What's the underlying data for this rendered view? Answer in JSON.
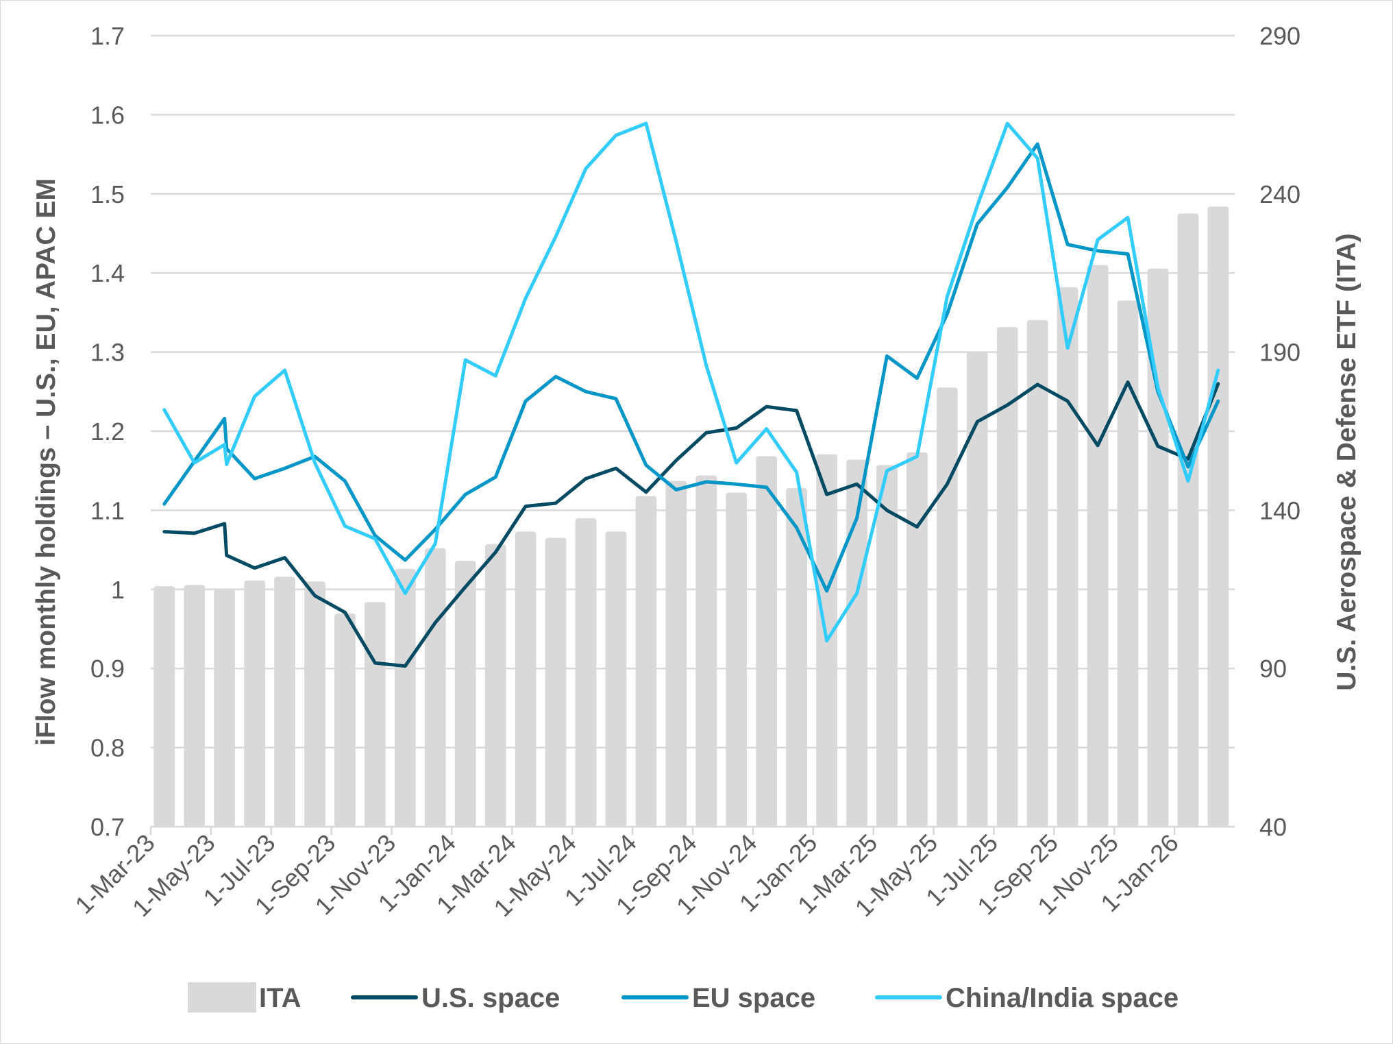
{
  "chart_data": {
    "type": "bar+line",
    "y_left": {
      "label": "iFlow monthly holdings – U.S., EU, APAC EM",
      "lim": [
        0.7,
        1.7
      ],
      "ticks": [
        "0.7",
        "0.8",
        "0.9",
        "1",
        "1.1",
        "1.2",
        "1.3",
        "1.4",
        "1.5",
        "1.6",
        "1.7"
      ]
    },
    "y_right": {
      "label": "U.S. Aerospace & Defense ETF (ITA)",
      "lim": [
        40,
        290
      ],
      "ticks": [
        "40",
        "90",
        "140",
        "190",
        "240",
        "290"
      ]
    },
    "x_axis": {
      "range": [
        "2023-03-01",
        "2026-03-01"
      ],
      "ticks": [
        "1-Mar-23",
        "1-May-23",
        "1-Jul-23",
        "1-Sep-23",
        "1-Nov-23",
        "1-Jan-24",
        "1-Mar-24",
        "1-May-24",
        "1-Jul-24",
        "1-Sep-24",
        "1-Nov-24",
        "1-Jan-25",
        "1-Mar-25",
        "1-May-25",
        "1-Jul-25",
        "1-Sep-25",
        "1-Nov-25",
        "1-Jan-26"
      ]
    },
    "grid": "horizontal",
    "legend_position": "bottom",
    "months": [
      "2023-03",
      "2023-04",
      "2023-05",
      "2023-06",
      "2023-07",
      "2023-08",
      "2023-09",
      "2023-10",
      "2023-11",
      "2023-12",
      "2024-01",
      "2024-02",
      "2024-03",
      "2024-04",
      "2024-05",
      "2024-06",
      "2024-07",
      "2024-08",
      "2024-09",
      "2024-10",
      "2024-11",
      "2024-12",
      "2025-01",
      "2025-02",
      "2025-03",
      "2025-04",
      "2025-05",
      "2025-06",
      "2025-07",
      "2025-08",
      "2025-09",
      "2025-10",
      "2025-11",
      "2025-12",
      "2026-01",
      "2026-02"
    ],
    "bars": {
      "name": "ITA",
      "axis": "right",
      "color": "#D9D9D9",
      "values": [
        116,
        116.4,
        115,
        117.8,
        119,
        117.5,
        107.4,
        111,
        121.5,
        128,
        124,
        129.3,
        133.3,
        131.3,
        137.5,
        133.3,
        144.5,
        149.3,
        151,
        145.6,
        157.1,
        147,
        157.7,
        156,
        154.3,
        158.3,
        178.8,
        190,
        197.9,
        200.1,
        210.5,
        217.5,
        206.3,
        216.4,
        233.8,
        236
      ]
    },
    "series": [
      {
        "name": "U.S. space",
        "axis": "left",
        "color": "#004B63",
        "points": [
          [
            "2023-03",
            1.073
          ],
          [
            "2023-04",
            1.071
          ],
          [
            "2023-05",
            1.083
          ],
          [
            "2023-05",
            1.043
          ],
          [
            "2023-06",
            1.027
          ],
          [
            "2023-07",
            1.04
          ],
          [
            "2023-08",
            0.992
          ],
          [
            "2023-09",
            0.971
          ],
          [
            "2023-10",
            0.907
          ],
          [
            "2023-11",
            0.903
          ],
          [
            "2023-12",
            0.958
          ],
          [
            "2024-01",
            1.003
          ],
          [
            "2024-02",
            1.047
          ],
          [
            "2024-03",
            1.105
          ],
          [
            "2024-04",
            1.109
          ],
          [
            "2024-05",
            1.14
          ],
          [
            "2024-06",
            1.153
          ],
          [
            "2024-07",
            1.123
          ],
          [
            "2024-08",
            1.163
          ],
          [
            "2024-09",
            1.198
          ],
          [
            "2024-10",
            1.204
          ],
          [
            "2024-11",
            1.231
          ],
          [
            "2024-12",
            1.226
          ],
          [
            "2025-01",
            1.12
          ],
          [
            "2025-02",
            1.133
          ],
          [
            "2025-03",
            1.1
          ],
          [
            "2025-04",
            1.079
          ],
          [
            "2025-05",
            1.133
          ],
          [
            "2025-06",
            1.212
          ],
          [
            "2025-07",
            1.233
          ],
          [
            "2025-08",
            1.259
          ],
          [
            "2025-09",
            1.238
          ],
          [
            "2025-10",
            1.182
          ],
          [
            "2025-11",
            1.262
          ],
          [
            "2025-12",
            1.181
          ],
          [
            "2026-01",
            1.165
          ],
          [
            "2026-02",
            1.26
          ]
        ]
      },
      {
        "name": "EU space",
        "axis": "left",
        "color": "#0096C8",
        "points": [
          [
            "2023-03",
            1.108
          ],
          [
            "2023-04",
            1.162
          ],
          [
            "2023-05",
            1.216
          ],
          [
            "2023-05",
            1.178
          ],
          [
            "2023-06",
            1.14
          ],
          [
            "2023-07",
            1.153
          ],
          [
            "2023-08",
            1.168
          ],
          [
            "2023-09",
            1.137
          ],
          [
            "2023-10",
            1.068
          ],
          [
            "2023-11",
            1.037
          ],
          [
            "2023-12",
            1.076
          ],
          [
            "2024-01",
            1.12
          ],
          [
            "2024-02",
            1.142
          ],
          [
            "2024-03",
            1.238
          ],
          [
            "2024-04",
            1.269
          ],
          [
            "2024-05",
            1.25
          ],
          [
            "2024-06",
            1.241
          ],
          [
            "2024-07",
            1.157
          ],
          [
            "2024-08",
            1.126
          ],
          [
            "2024-09",
            1.136
          ],
          [
            "2024-10",
            1.133
          ],
          [
            "2024-11",
            1.129
          ],
          [
            "2024-12",
            1.078
          ],
          [
            "2025-01",
            0.998
          ],
          [
            "2025-02",
            1.09
          ],
          [
            "2025-03",
            1.295
          ],
          [
            "2025-04",
            1.267
          ],
          [
            "2025-05",
            1.348
          ],
          [
            "2025-06",
            1.462
          ],
          [
            "2025-07",
            1.508
          ],
          [
            "2025-08",
            1.563
          ],
          [
            "2025-09",
            1.436
          ],
          [
            "2025-10",
            1.428
          ],
          [
            "2025-11",
            1.424
          ],
          [
            "2025-12",
            1.25
          ],
          [
            "2026-01",
            1.155
          ],
          [
            "2026-02",
            1.238
          ]
        ]
      },
      {
        "name": "China/India space",
        "axis": "left",
        "color": "#33CCFF",
        "points": [
          [
            "2023-03",
            1.227
          ],
          [
            "2023-04",
            1.16
          ],
          [
            "2023-05",
            1.183
          ],
          [
            "2023-05",
            1.158
          ],
          [
            "2023-06",
            1.244
          ],
          [
            "2023-07",
            1.277
          ],
          [
            "2023-08",
            1.16
          ],
          [
            "2023-09",
            1.08
          ],
          [
            "2023-10",
            1.064
          ],
          [
            "2023-11",
            0.995
          ],
          [
            "2023-12",
            1.058
          ],
          [
            "2024-01",
            1.29
          ],
          [
            "2024-02",
            1.27
          ],
          [
            "2024-03",
            1.368
          ],
          [
            "2024-04",
            1.446
          ],
          [
            "2024-05",
            1.532
          ],
          [
            "2024-06",
            1.574
          ],
          [
            "2024-07",
            1.589
          ],
          [
            "2024-08",
            1.44
          ],
          [
            "2024-09",
            1.283
          ],
          [
            "2024-10",
            1.16
          ],
          [
            "2024-11",
            1.203
          ],
          [
            "2024-12",
            1.148
          ],
          [
            "2025-01",
            0.935
          ],
          [
            "2025-02",
            0.995
          ],
          [
            "2025-03",
            1.15
          ],
          [
            "2025-04",
            1.168
          ],
          [
            "2025-05",
            1.37
          ],
          [
            "2025-06",
            1.485
          ],
          [
            "2025-07",
            1.589
          ],
          [
            "2025-08",
            1.545
          ],
          [
            "2025-09",
            1.305
          ],
          [
            "2025-10",
            1.442
          ],
          [
            "2025-11",
            1.47
          ],
          [
            "2025-12",
            1.255
          ],
          [
            "2026-01",
            1.137
          ],
          [
            "2026-02",
            1.277
          ]
        ]
      }
    ]
  }
}
